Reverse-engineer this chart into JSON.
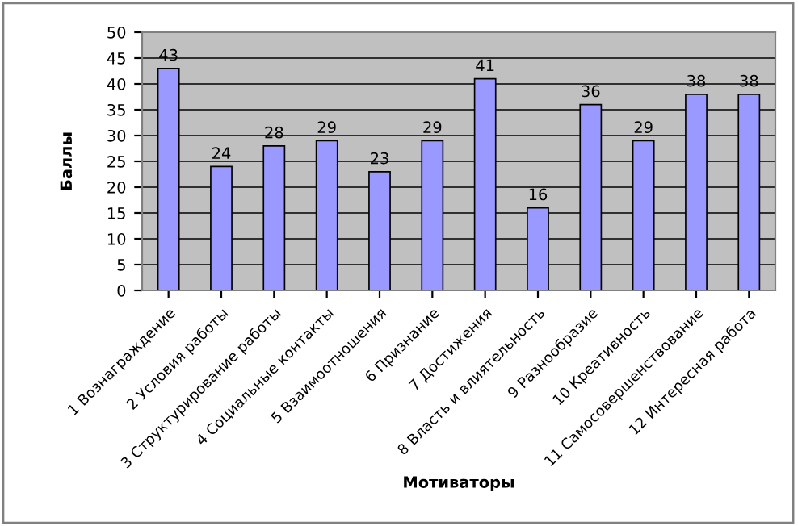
{
  "chart_data": {
    "type": "bar",
    "xlabel": "Мотиваторы",
    "ylabel": "Баллы",
    "categories": [
      "1 Вознаграждение",
      "2 Условия работы",
      "3 Структурирование работы",
      "4 Социальные контакты",
      "5 Взаимоотношения",
      "6 Признание",
      "7 Достижения",
      "8 Власть и влиятельность",
      "9 Разнообразие",
      "10 Креативность",
      "11 Самосовершенствование",
      "12 Интересная работа"
    ],
    "values": [
      43,
      24,
      28,
      29,
      23,
      29,
      41,
      16,
      36,
      29,
      38,
      38
    ],
    "color": "#9999ff",
    "ylim": [
      0,
      50
    ],
    "yticks": [
      0,
      5,
      10,
      15,
      20,
      25,
      30,
      35,
      40,
      45,
      50
    ],
    "grid": "y",
    "data_labels": true,
    "legend": false
  }
}
